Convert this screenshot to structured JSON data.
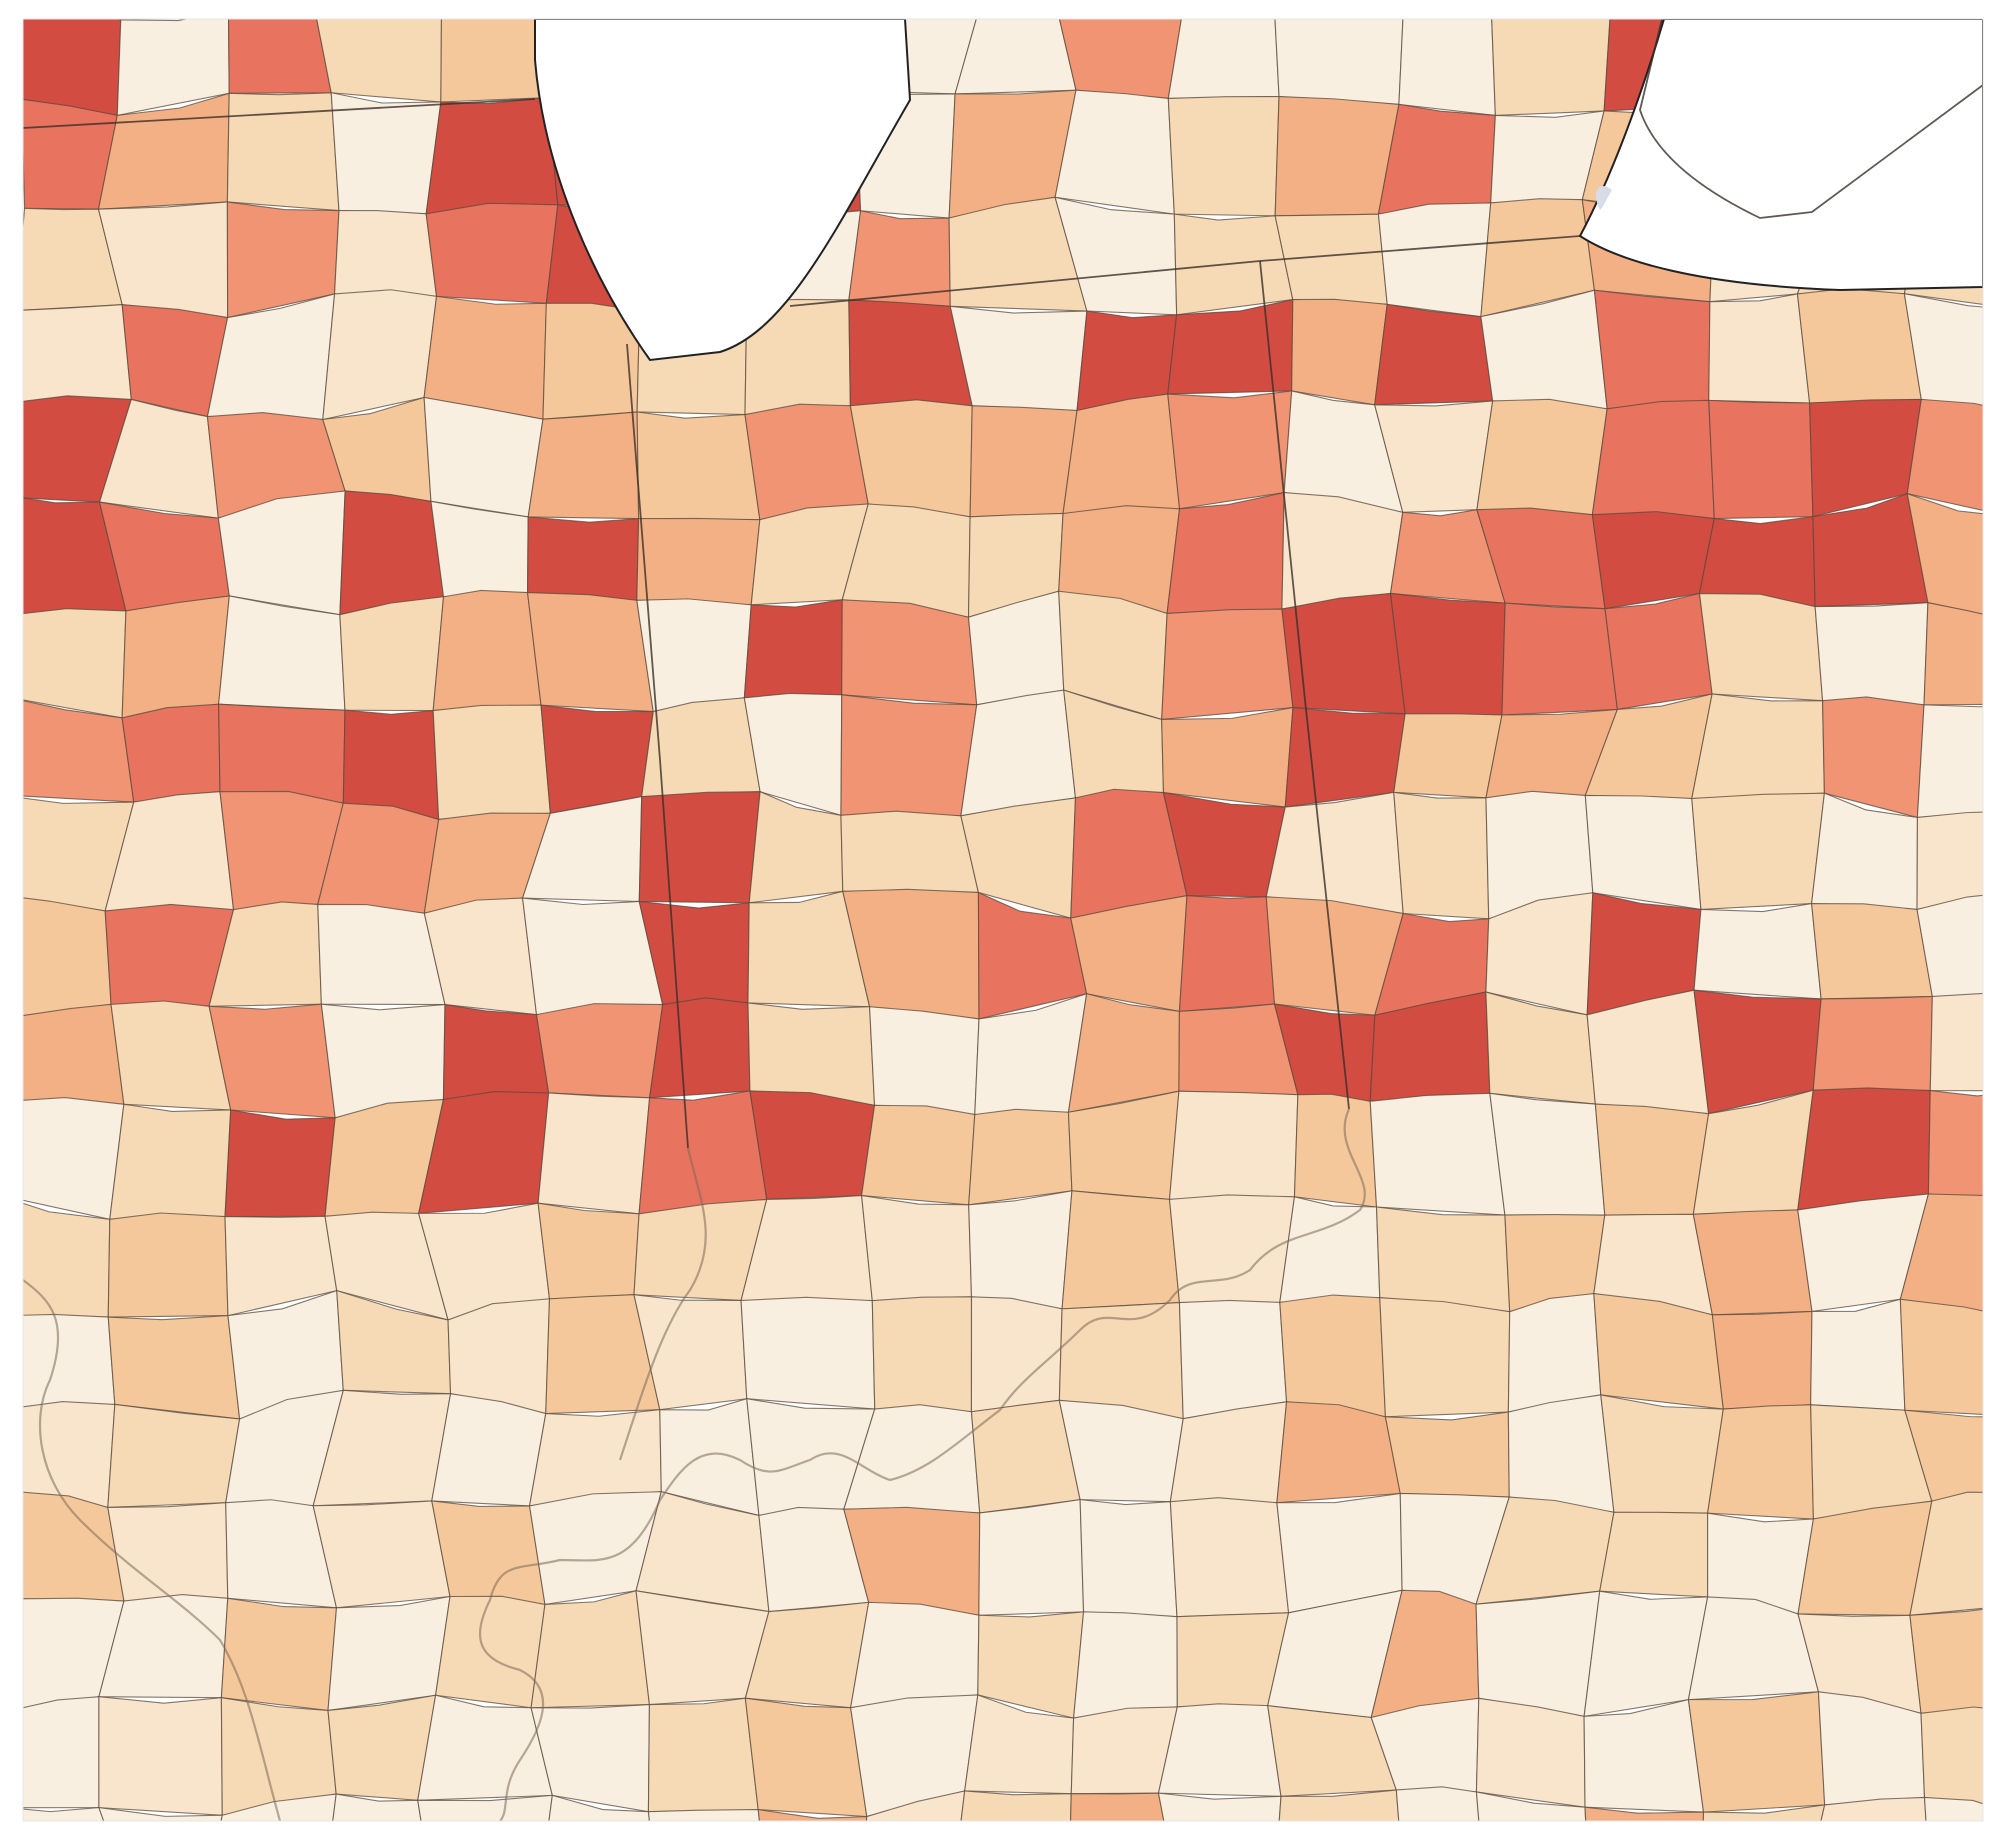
{
  "map": {
    "palette": [
      "#f9efe1",
      "#f8e5cc",
      "#f6d9b5",
      "#f5c89b",
      "#f3b085",
      "#f09474",
      "#e8735f",
      "#d24c42"
    ]
  }
}
